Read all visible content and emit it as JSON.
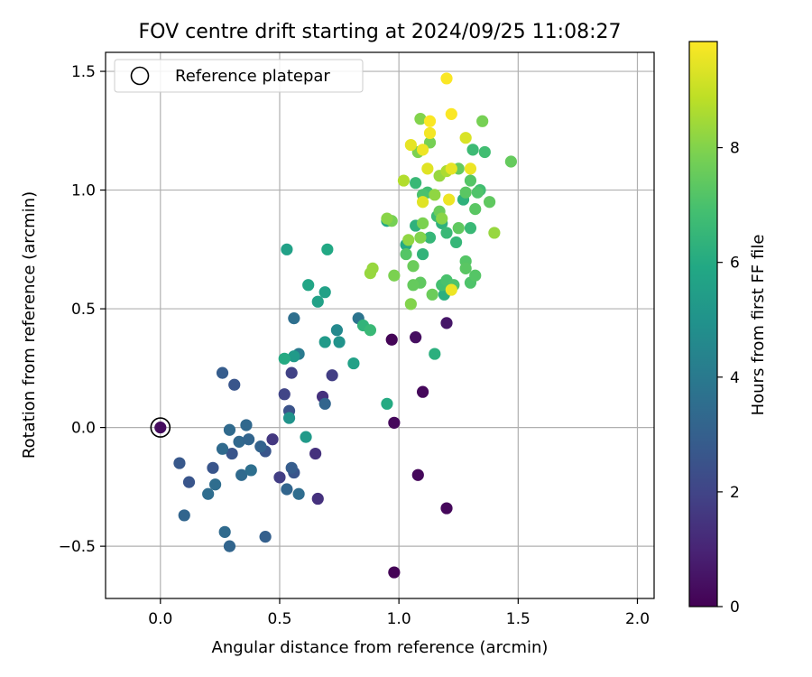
{
  "chart_data": {
    "type": "scatter",
    "title": "FOV centre drift starting at 2024/09/25 11:08:27",
    "xlabel": "Angular distance from reference (arcmin)",
    "ylabel": "Rotation from reference (arcmin)",
    "xlim": [
      -0.23,
      2.07
    ],
    "ylim": [
      -0.72,
      1.58
    ],
    "xticks": [
      0.0,
      0.5,
      1.0,
      1.5,
      2.0
    ],
    "xtick_labels": [
      "0.0",
      "0.5",
      "1.0",
      "1.5",
      "2.0"
    ],
    "yticks": [
      -0.5,
      0.0,
      0.5,
      1.0,
      1.5
    ],
    "ytick_labels": [
      "−0.5",
      "0.0",
      "0.5",
      "1.0",
      "1.5"
    ],
    "grid": true,
    "legend": {
      "placement": "top-left",
      "entries": [
        "Reference platepar"
      ]
    },
    "reference_point": {
      "x": 0.0,
      "y": 0.0
    },
    "colorbar": {
      "label": "Hours from first FF file",
      "colormap": "viridis",
      "range": [
        0,
        9.85
      ],
      "ticks": [
        0,
        2,
        4,
        6,
        8
      ],
      "tick_labels": [
        "0",
        "2",
        "4",
        "6",
        "8"
      ]
    },
    "points": [
      {
        "x": 0.0,
        "y": 0.0,
        "h": 0.3
      },
      {
        "x": 0.98,
        "y": -0.61,
        "h": 0.05
      },
      {
        "x": 0.98,
        "y": 0.02,
        "h": 0.2
      },
      {
        "x": 1.08,
        "y": -0.2,
        "h": 0.2
      },
      {
        "x": 1.2,
        "y": -0.34,
        "h": 0.2
      },
      {
        "x": 1.1,
        "y": 0.15,
        "h": 0.2
      },
      {
        "x": 1.07,
        "y": 0.38,
        "h": 0.4
      },
      {
        "x": 1.2,
        "y": 0.44,
        "h": 0.6
      },
      {
        "x": 0.97,
        "y": 0.37,
        "h": 0.1
      },
      {
        "x": 0.66,
        "y": -0.3,
        "h": 1.4
      },
      {
        "x": 0.65,
        "y": -0.11,
        "h": 1.4
      },
      {
        "x": 0.68,
        "y": 0.13,
        "h": 1.4
      },
      {
        "x": 0.72,
        "y": 0.22,
        "h": 1.8
      },
      {
        "x": 0.47,
        "y": -0.05,
        "h": 1.6
      },
      {
        "x": 0.5,
        "y": -0.21,
        "h": 1.8
      },
      {
        "x": 0.55,
        "y": 0.23,
        "h": 1.9
      },
      {
        "x": 0.52,
        "y": 0.14,
        "h": 2.0
      },
      {
        "x": 0.54,
        "y": 0.07,
        "h": 2.5
      },
      {
        "x": 0.44,
        "y": -0.1,
        "h": 2.6
      },
      {
        "x": 0.56,
        "y": -0.19,
        "h": 2.6
      },
      {
        "x": 0.55,
        "y": -0.17,
        "h": 2.9
      },
      {
        "x": 0.53,
        "y": -0.26,
        "h": 3.2
      },
      {
        "x": 0.58,
        "y": -0.28,
        "h": 3.5
      },
      {
        "x": 0.42,
        "y": -0.08,
        "h": 3.1
      },
      {
        "x": 0.3,
        "y": -0.11,
        "h": 2.6
      },
      {
        "x": 0.31,
        "y": 0.18,
        "h": 2.6
      },
      {
        "x": 0.26,
        "y": 0.23,
        "h": 2.9
      },
      {
        "x": 0.22,
        "y": -0.17,
        "h": 2.6
      },
      {
        "x": 0.12,
        "y": -0.23,
        "h": 2.6
      },
      {
        "x": 0.08,
        "y": -0.15,
        "h": 2.7
      },
      {
        "x": 0.1,
        "y": -0.37,
        "h": 3.2
      },
      {
        "x": 0.29,
        "y": -0.5,
        "h": 3.2
      },
      {
        "x": 0.27,
        "y": -0.44,
        "h": 3.4
      },
      {
        "x": 0.44,
        "y": -0.46,
        "h": 3.0
      },
      {
        "x": 0.2,
        "y": -0.28,
        "h": 3.5
      },
      {
        "x": 0.23,
        "y": -0.24,
        "h": 3.5
      },
      {
        "x": 0.26,
        "y": -0.09,
        "h": 3.4
      },
      {
        "x": 0.29,
        "y": -0.01,
        "h": 3.4
      },
      {
        "x": 0.33,
        "y": -0.06,
        "h": 3.3
      },
      {
        "x": 0.36,
        "y": 0.01,
        "h": 3.3
      },
      {
        "x": 0.37,
        "y": -0.05,
        "h": 3.2
      },
      {
        "x": 0.34,
        "y": -0.2,
        "h": 3.4
      },
      {
        "x": 0.38,
        "y": -0.18,
        "h": 3.6
      },
      {
        "x": 0.56,
        "y": 0.46,
        "h": 3.6
      },
      {
        "x": 0.69,
        "y": 0.1,
        "h": 3.2
      },
      {
        "x": 0.83,
        "y": 0.46,
        "h": 3.8
      },
      {
        "x": 0.58,
        "y": 0.31,
        "h": 4.0
      },
      {
        "x": 0.54,
        "y": 0.04,
        "h": 5.0
      },
      {
        "x": 0.61,
        "y": -0.04,
        "h": 5.3
      },
      {
        "x": 0.56,
        "y": 0.3,
        "h": 5.3
      },
      {
        "x": 0.74,
        "y": 0.41,
        "h": 4.6
      },
      {
        "x": 0.75,
        "y": 0.36,
        "h": 5.0
      },
      {
        "x": 0.69,
        "y": 0.36,
        "h": 5.3
      },
      {
        "x": 0.81,
        "y": 0.27,
        "h": 5.6
      },
      {
        "x": 0.52,
        "y": 0.29,
        "h": 6.0
      },
      {
        "x": 0.53,
        "y": 0.75,
        "h": 5.6
      },
      {
        "x": 0.62,
        "y": 0.6,
        "h": 5.8
      },
      {
        "x": 0.66,
        "y": 0.53,
        "h": 5.6
      },
      {
        "x": 0.69,
        "y": 0.57,
        "h": 5.6
      },
      {
        "x": 0.7,
        "y": 0.75,
        "h": 5.9
      },
      {
        "x": 0.85,
        "y": 0.43,
        "h": 6.4
      },
      {
        "x": 0.88,
        "y": 0.41,
        "h": 6.6
      },
      {
        "x": 0.95,
        "y": 0.1,
        "h": 6.0
      },
      {
        "x": 1.15,
        "y": 0.31,
        "h": 6.2
      },
      {
        "x": 1.19,
        "y": 0.56,
        "h": 6.2
      },
      {
        "x": 0.95,
        "y": 0.87,
        "h": 5.9
      },
      {
        "x": 1.03,
        "y": 0.77,
        "h": 6.0
      },
      {
        "x": 1.07,
        "y": 0.85,
        "h": 6.3
      },
      {
        "x": 1.1,
        "y": 0.73,
        "h": 6.4
      },
      {
        "x": 1.13,
        "y": 0.8,
        "h": 6.5
      },
      {
        "x": 1.18,
        "y": 0.86,
        "h": 6.3
      },
      {
        "x": 1.2,
        "y": 0.82,
        "h": 6.6
      },
      {
        "x": 1.24,
        "y": 0.78,
        "h": 6.5
      },
      {
        "x": 1.27,
        "y": 0.96,
        "h": 6.3
      },
      {
        "x": 1.3,
        "y": 0.84,
        "h": 6.6
      },
      {
        "x": 1.31,
        "y": 1.17,
        "h": 6.7
      },
      {
        "x": 1.34,
        "y": 1.0,
        "h": 6.8
      },
      {
        "x": 1.36,
        "y": 1.16,
        "h": 6.8
      },
      {
        "x": 1.07,
        "y": 1.03,
        "h": 6.6
      },
      {
        "x": 1.12,
        "y": 0.99,
        "h": 6.8
      },
      {
        "x": 1.16,
        "y": 0.89,
        "h": 6.7
      },
      {
        "x": 1.1,
        "y": 0.98,
        "h": 7.0
      },
      {
        "x": 1.18,
        "y": 0.6,
        "h": 6.9
      },
      {
        "x": 1.2,
        "y": 0.62,
        "h": 7.0
      },
      {
        "x": 1.23,
        "y": 0.6,
        "h": 7.1
      },
      {
        "x": 1.3,
        "y": 0.61,
        "h": 7.1
      },
      {
        "x": 1.32,
        "y": 0.64,
        "h": 7.2
      },
      {
        "x": 1.28,
        "y": 0.7,
        "h": 7.2
      },
      {
        "x": 1.28,
        "y": 0.67,
        "h": 7.3
      },
      {
        "x": 1.25,
        "y": 0.84,
        "h": 7.4
      },
      {
        "x": 1.32,
        "y": 0.92,
        "h": 7.3
      },
      {
        "x": 1.38,
        "y": 0.95,
        "h": 7.4
      },
      {
        "x": 1.4,
        "y": 0.82,
        "h": 8.3
      },
      {
        "x": 1.47,
        "y": 1.12,
        "h": 7.5
      },
      {
        "x": 1.35,
        "y": 1.29,
        "h": 7.8
      },
      {
        "x": 1.09,
        "y": 1.3,
        "h": 8.0
      },
      {
        "x": 1.13,
        "y": 1.2,
        "h": 7.8
      },
      {
        "x": 1.08,
        "y": 1.16,
        "h": 7.9
      },
      {
        "x": 1.25,
        "y": 1.09,
        "h": 7.5
      },
      {
        "x": 1.3,
        "y": 1.04,
        "h": 7.2
      },
      {
        "x": 1.28,
        "y": 0.99,
        "h": 7.3
      },
      {
        "x": 1.33,
        "y": 0.99,
        "h": 7.1
      },
      {
        "x": 1.03,
        "y": 0.73,
        "h": 7.2
      },
      {
        "x": 1.06,
        "y": 0.68,
        "h": 7.6
      },
      {
        "x": 1.09,
        "y": 0.61,
        "h": 7.4
      },
      {
        "x": 1.06,
        "y": 0.6,
        "h": 7.5
      },
      {
        "x": 1.14,
        "y": 0.56,
        "h": 7.6
      },
      {
        "x": 1.05,
        "y": 0.52,
        "h": 8.0
      },
      {
        "x": 0.98,
        "y": 0.64,
        "h": 7.9
      },
      {
        "x": 0.89,
        "y": 0.67,
        "h": 8.3
      },
      {
        "x": 0.88,
        "y": 0.65,
        "h": 8.3
      },
      {
        "x": 0.97,
        "y": 0.87,
        "h": 7.8
      },
      {
        "x": 0.95,
        "y": 0.88,
        "h": 8.1
      },
      {
        "x": 1.09,
        "y": 0.8,
        "h": 8.0
      },
      {
        "x": 1.04,
        "y": 0.79,
        "h": 8.2
      },
      {
        "x": 1.1,
        "y": 0.86,
        "h": 7.9
      },
      {
        "x": 1.17,
        "y": 0.91,
        "h": 7.6
      },
      {
        "x": 1.18,
        "y": 0.88,
        "h": 8.1
      },
      {
        "x": 1.15,
        "y": 0.98,
        "h": 8.2
      },
      {
        "x": 1.17,
        "y": 1.06,
        "h": 8.3
      },
      {
        "x": 1.2,
        "y": 1.08,
        "h": 8.6
      },
      {
        "x": 1.02,
        "y": 1.04,
        "h": 8.7
      },
      {
        "x": 1.1,
        "y": 0.95,
        "h": 9.4
      },
      {
        "x": 1.21,
        "y": 0.96,
        "h": 9.6
      },
      {
        "x": 1.22,
        "y": 1.09,
        "h": 9.5
      },
      {
        "x": 1.12,
        "y": 1.09,
        "h": 9.4
      },
      {
        "x": 1.3,
        "y": 1.09,
        "h": 9.6
      },
      {
        "x": 1.28,
        "y": 1.22,
        "h": 9.3
      },
      {
        "x": 1.05,
        "y": 1.19,
        "h": 9.5
      },
      {
        "x": 1.1,
        "y": 1.17,
        "h": 9.6
      },
      {
        "x": 1.13,
        "y": 1.24,
        "h": 9.7
      },
      {
        "x": 1.13,
        "y": 1.29,
        "h": 9.8
      },
      {
        "x": 1.22,
        "y": 1.32,
        "h": 9.8
      },
      {
        "x": 1.2,
        "y": 1.47,
        "h": 9.8
      },
      {
        "x": 1.22,
        "y": 0.58,
        "h": 9.6
      }
    ]
  }
}
